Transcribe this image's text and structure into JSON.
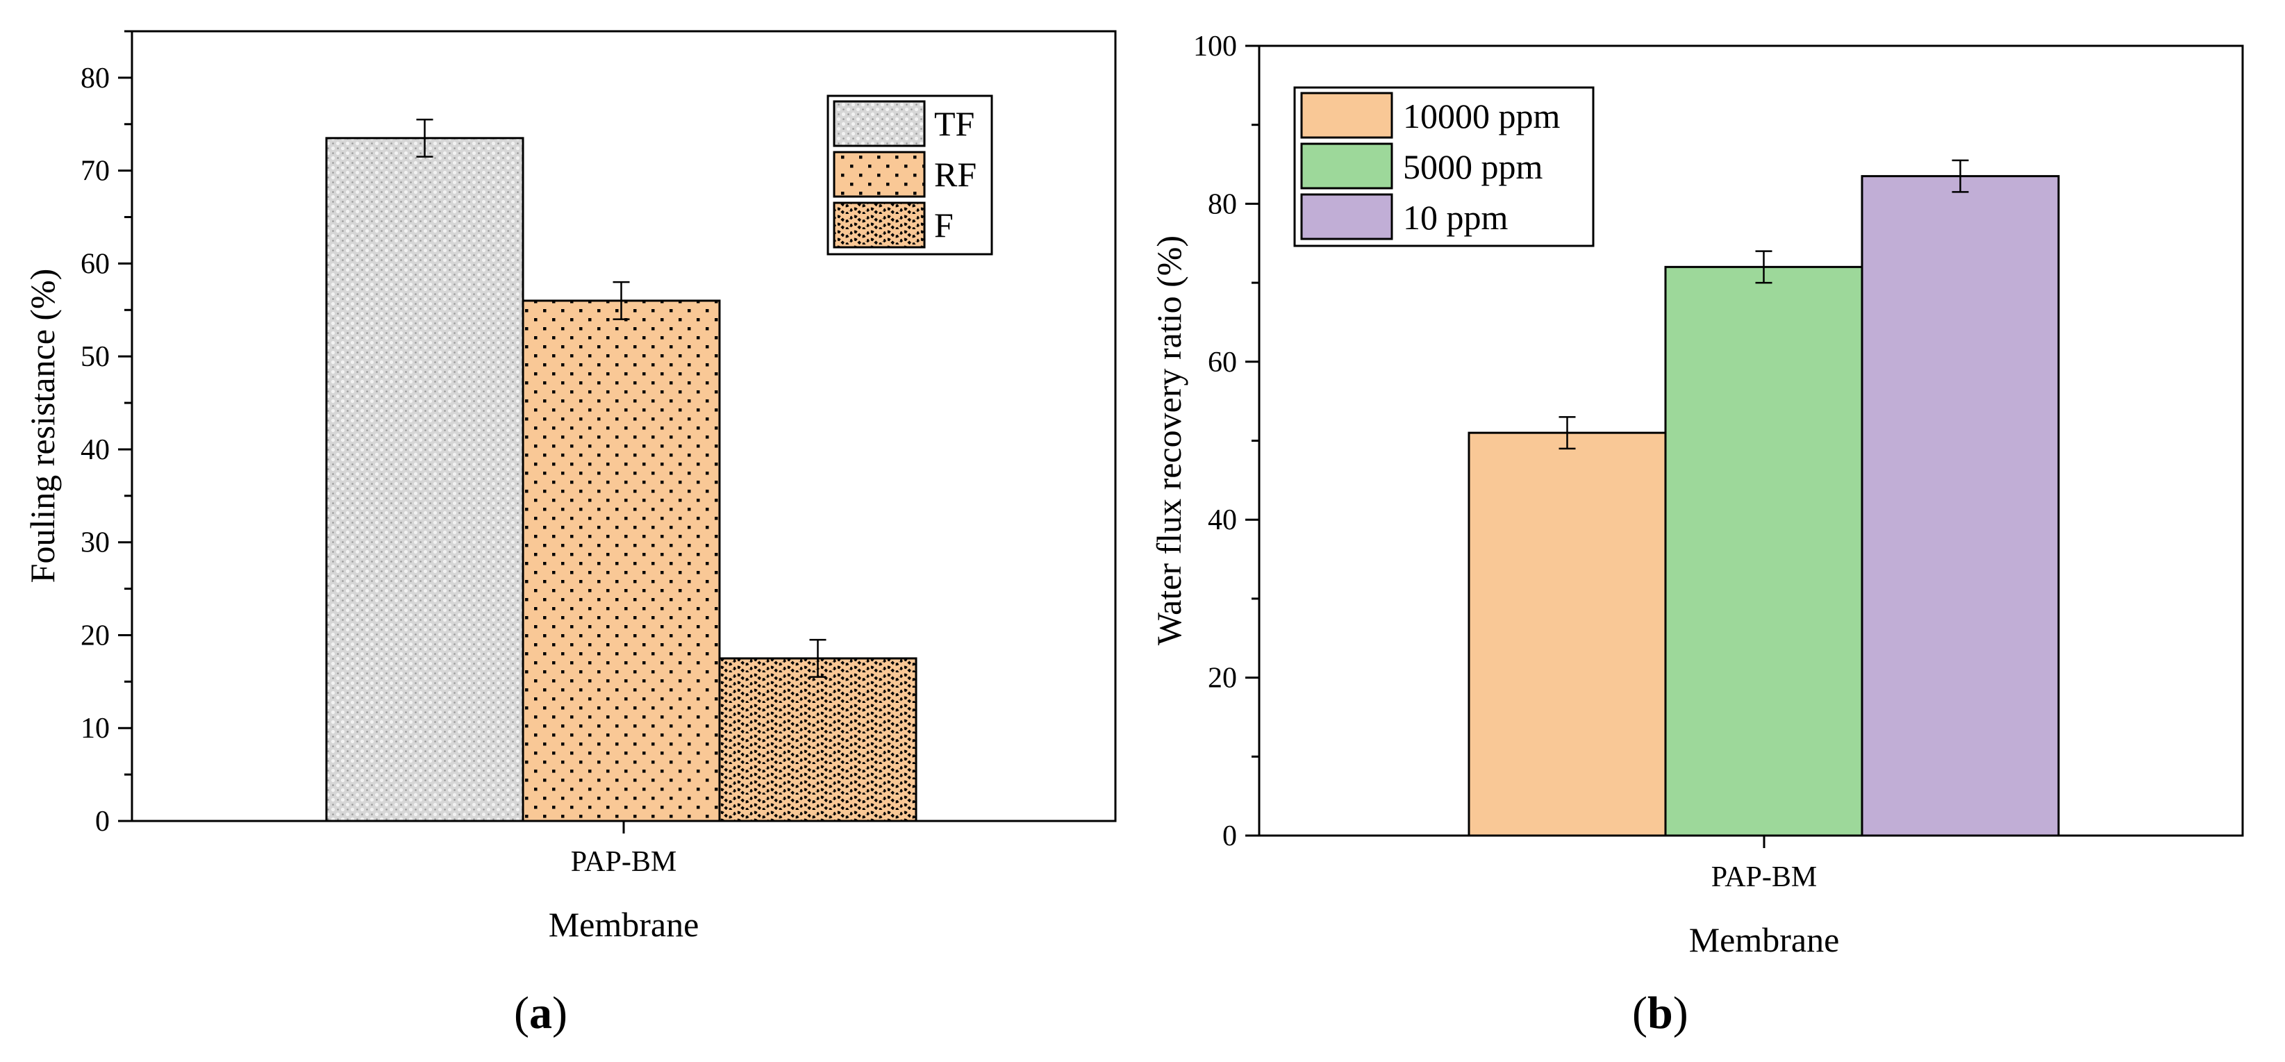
{
  "chart_data": [
    {
      "panel": "a",
      "type": "bar",
      "categories": [
        "PAP-BM"
      ],
      "series": [
        {
          "name": "TF",
          "values": [
            73.5
          ],
          "error": [
            2.0
          ],
          "pattern": "crosshatch-gray"
        },
        {
          "name": "RF",
          "values": [
            56.0
          ],
          "error": [
            2.0
          ],
          "pattern": "dots-orange"
        },
        {
          "name": "F",
          "values": [
            17.5
          ],
          "error": [
            2.0
          ],
          "pattern": "waves-orange"
        }
      ],
      "title": "",
      "xlabel": "Membrane",
      "ylabel": "Fouling resistance (%)",
      "ylim": [
        0,
        85
      ],
      "yticks": [
        0,
        10,
        20,
        30,
        40,
        50,
        60,
        70,
        80
      ],
      "legend_position": "top-right",
      "grid": false
    },
    {
      "panel": "b",
      "type": "bar",
      "categories": [
        "PAP-BM"
      ],
      "series": [
        {
          "name": "10000 ppm",
          "values": [
            51.0
          ],
          "error": [
            2.0
          ],
          "color": "#F9C896"
        },
        {
          "name": "5000 ppm",
          "values": [
            72.0
          ],
          "error": [
            2.0
          ],
          "color": "#9DD89A"
        },
        {
          "name": "10 ppm",
          "values": [
            83.5
          ],
          "error": [
            2.0
          ],
          "color": "#C1AED6"
        }
      ],
      "title": "",
      "xlabel": "Membrane",
      "ylabel": "Water flux recovery ratio (%)",
      "ylim": [
        0,
        100
      ],
      "yticks": [
        0,
        20,
        40,
        60,
        80,
        100
      ],
      "legend_position": "top-left",
      "grid": false
    }
  ],
  "panel_labels": {
    "a": {
      "open": "(",
      "letter": "a",
      "close": ")"
    },
    "b": {
      "open": "(",
      "letter": "b",
      "close": ")"
    }
  },
  "colors": {
    "tf_fill": "#D4D4D4",
    "orange_fill": "#F9C896",
    "green_fill": "#9DD89A",
    "purple_fill": "#C1AED6"
  }
}
